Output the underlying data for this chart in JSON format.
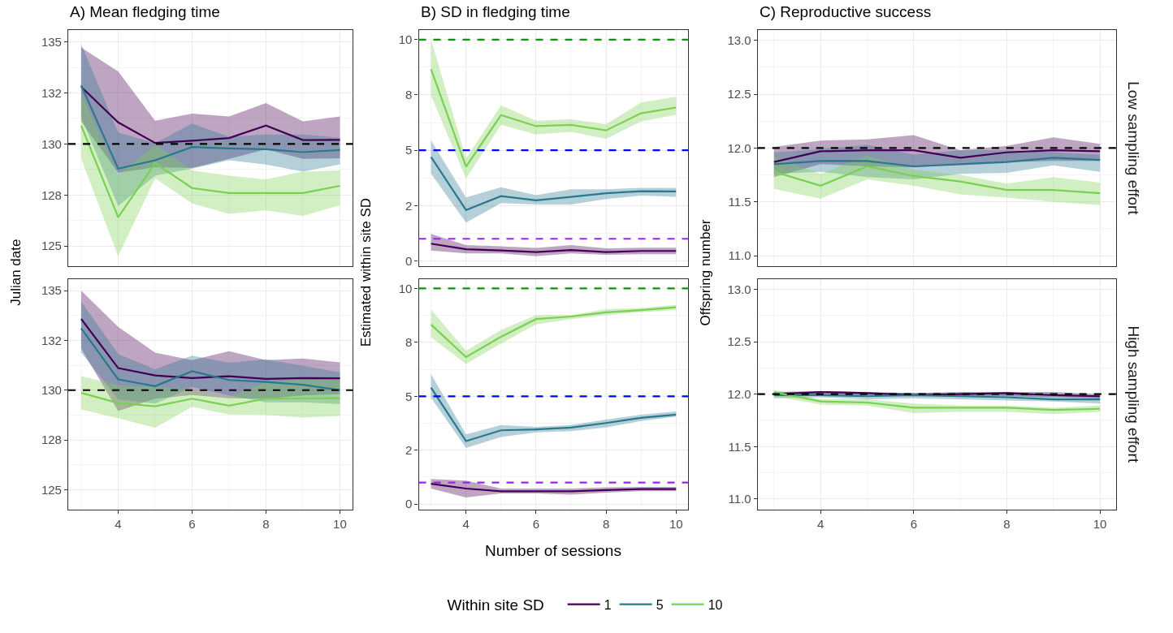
{
  "chart_data": [
    {
      "type": "line",
      "title": "A) Mean fledging time",
      "ylabel": "Julian date",
      "x": [
        3,
        4,
        5,
        6,
        7,
        8,
        9,
        10
      ],
      "xlim": [
        2.65,
        10.35
      ],
      "xticks": [
        4,
        6,
        8,
        10
      ],
      "ylim": [
        124.0,
        135.6
      ],
      "yticks": [
        125,
        {
          "value": 127.5,
          "label": "128"
        },
        130,
        {
          "value": 132.5,
          "label": "132"
        },
        135
      ],
      "grid": true,
      "tick_labels": "y",
      "legend": "bottom",
      "legend_title": "Within site SD",
      "series": [
        {
          "name": "1",
          "color": "#440154",
          "values": [
            132.8,
            131.06,
            130.05,
            130.16,
            130.29,
            130.9,
            130.19,
            130.2
          ],
          "lower": [
            131.1,
            128.59,
            128.86,
            128.82,
            129.27,
            129.74,
            129.27,
            129.3
          ],
          "upper": [
            134.73,
            133.55,
            131.14,
            131.49,
            131.35,
            132.0,
            131.11,
            131.35
          ]
        },
        {
          "name": "5",
          "color": "#2A788E",
          "values": [
            132.87,
            128.79,
            129.2,
            129.85,
            129.78,
            129.74,
            129.6,
            129.7
          ],
          "lower": [
            131.3,
            126.96,
            128.45,
            128.79,
            129.2,
            128.99,
            128.65,
            129.0
          ],
          "upper": [
            134.9,
            130.56,
            130.05,
            131.0,
            130.35,
            130.46,
            130.46,
            130.3
          ]
        },
        {
          "name": "10",
          "color": "#7AD151",
          "values": [
            130.9,
            126.41,
            129.06,
            127.84,
            127.6,
            127.6,
            127.6,
            127.95
          ],
          "lower": [
            129.27,
            124.51,
            128.32,
            127.09,
            126.58,
            126.75,
            126.48,
            127.0
          ],
          "upper": [
            132.46,
            128.48,
            129.95,
            128.7,
            128.45,
            128.27,
            128.65,
            128.7
          ]
        }
      ],
      "ref_lines": [
        {
          "axis": "y",
          "value": 130,
          "color": "#000000",
          "line_style": "dashed"
        }
      ]
    },
    {
      "type": "line",
      "title": "B) SD in fledging time",
      "ylabel": "Estimated within site SD",
      "x": [
        3,
        4,
        5,
        6,
        7,
        8,
        9,
        10
      ],
      "xlim": [
        2.65,
        10.35
      ],
      "xticks": [
        4,
        6,
        8,
        10
      ],
      "ylim": [
        -0.25,
        10.45
      ],
      "yticks": [
        0,
        {
          "value": 2.5,
          "label": "2"
        },
        5,
        {
          "value": 7.5,
          "label": "8"
        },
        10
      ],
      "grid": true,
      "tick_labels": "y",
      "series": [
        {
          "color": "#440154",
          "values": [
            0.78,
            0.53,
            0.47,
            0.4,
            0.49,
            0.4,
            0.45,
            0.45
          ],
          "lower": [
            0.47,
            0.34,
            0.34,
            0.21,
            0.34,
            0.28,
            0.3,
            0.3
          ],
          "upper": [
            1.22,
            0.72,
            0.66,
            0.59,
            0.72,
            0.57,
            0.6,
            0.6
          ]
        },
        {
          "color": "#2A788E",
          "values": [
            4.7,
            2.3,
            2.93,
            2.74,
            2.89,
            3.06,
            3.15,
            3.14
          ],
          "lower": [
            3.94,
            1.73,
            2.61,
            2.55,
            2.55,
            2.8,
            2.95,
            2.9
          ],
          "upper": [
            5.45,
            2.87,
            3.33,
            2.97,
            3.24,
            3.24,
            3.3,
            3.3
          ]
        },
        {
          "color": "#7AD151",
          "values": [
            8.67,
            4.26,
            6.59,
            6.09,
            6.15,
            5.9,
            6.67,
            6.93
          ],
          "lower": [
            7.47,
            3.72,
            6.15,
            5.71,
            5.83,
            5.52,
            6.3,
            6.6
          ],
          "upper": [
            10.0,
            4.63,
            7.03,
            6.34,
            6.4,
            6.17,
            7.16,
            7.42
          ]
        }
      ],
      "ref_lines": [
        {
          "axis": "y",
          "value": 10,
          "color": "#009900",
          "line_style": "dashed"
        },
        {
          "axis": "y",
          "value": 5,
          "color": "#0000FF",
          "line_style": "dashed"
        },
        {
          "axis": "y",
          "value": 1,
          "color": "#A020F0",
          "line_style": "dashed"
        }
      ]
    },
    {
      "type": "line",
      "title": "C) Reproductive success",
      "ylabel": "Offspring number",
      "annotations": [
        "Low sampling effort"
      ],
      "x": [
        3,
        4,
        5,
        6,
        7,
        8,
        9,
        10
      ],
      "xlim": [
        2.65,
        10.35
      ],
      "xticks": [
        4,
        6,
        8,
        10
      ],
      "ylim": [
        10.9,
        13.1
      ],
      "yticks": [
        {
          "value": 11,
          "label": "11.0"
        },
        11.5,
        {
          "value": 12,
          "label": "12.0"
        },
        12.5,
        {
          "value": 13,
          "label": "13.0"
        }
      ],
      "grid": true,
      "tick_labels": "y",
      "series": [
        {
          "color": "#440154",
          "values": [
            11.87,
            11.97,
            11.98,
            11.98,
            11.91,
            11.96,
            11.98,
            11.97
          ],
          "lower": [
            11.73,
            11.85,
            11.83,
            11.82,
            11.85,
            11.87,
            11.88,
            11.88
          ],
          "upper": [
            12.01,
            12.07,
            12.08,
            12.12,
            11.98,
            12.02,
            12.1,
            12.04
          ]
        },
        {
          "color": "#2A788E",
          "values": [
            11.85,
            11.88,
            11.88,
            11.83,
            11.85,
            11.87,
            11.91,
            11.89
          ],
          "lower": [
            11.76,
            11.78,
            11.73,
            11.71,
            11.76,
            11.77,
            11.84,
            11.78
          ],
          "upper": [
            11.96,
            11.99,
            12.03,
            11.94,
            11.98,
            11.98,
            11.96,
            11.94
          ]
        },
        {
          "color": "#7AD151",
          "values": [
            11.78,
            11.65,
            11.83,
            11.74,
            11.69,
            11.61,
            11.61,
            11.58
          ],
          "lower": [
            11.62,
            11.53,
            11.71,
            11.65,
            11.57,
            11.54,
            11.5,
            11.47
          ],
          "upper": [
            11.92,
            11.76,
            11.93,
            11.8,
            11.75,
            11.67,
            11.73,
            11.68
          ]
        }
      ],
      "ref_lines": [
        {
          "axis": "y",
          "value": 12,
          "color": "#000000",
          "line_style": "dashed"
        }
      ]
    },
    {
      "type": "line",
      "x": [
        3,
        4,
        5,
        6,
        7,
        8,
        9,
        10
      ],
      "xlim": [
        2.65,
        10.35
      ],
      "xticks": [
        4,
        6,
        8,
        10
      ],
      "ylim": [
        124.0,
        135.6
      ],
      "yticks": [
        125,
        {
          "value": 127.5,
          "label": "128"
        },
        130,
        {
          "value": 132.5,
          "label": "132"
        },
        135
      ],
      "grid": true,
      "series": [
        {
          "color": "#440154",
          "values": [
            133.58,
            131.11,
            130.74,
            130.61,
            130.7,
            130.57,
            130.61,
            130.6
          ],
          "lower": [
            132.09,
            128.95,
            129.57,
            129.76,
            129.59,
            129.57,
            129.73,
            129.8
          ],
          "upper": [
            135.0,
            133.18,
            131.89,
            131.51,
            131.96,
            131.51,
            131.59,
            131.4
          ]
        },
        {
          "color": "#2A788E",
          "values": [
            133.11,
            130.54,
            130.2,
            130.95,
            130.51,
            130.41,
            130.27,
            130.0
          ],
          "lower": [
            131.89,
            129.53,
            129.32,
            130.16,
            129.73,
            129.39,
            129.39,
            129.3
          ],
          "upper": [
            134.46,
            131.82,
            131.05,
            131.73,
            131.38,
            131.55,
            131.22,
            130.9
          ]
        },
        {
          "color": "#7AD151",
          "values": [
            129.86,
            129.35,
            129.19,
            129.57,
            129.22,
            129.57,
            129.59,
            129.6
          ],
          "lower": [
            129.03,
            128.58,
            128.11,
            129.16,
            128.78,
            128.76,
            128.62,
            128.7
          ],
          "upper": [
            130.7,
            130.24,
            130.14,
            130.03,
            129.66,
            130.41,
            130.54,
            130.5
          ]
        }
      ],
      "ref_lines": [
        {
          "axis": "y",
          "value": 130,
          "color": "#000000",
          "line_style": "dashed"
        }
      ]
    },
    {
      "type": "line",
      "xlabel": "Number of sessions",
      "x": [
        3,
        4,
        5,
        6,
        7,
        8,
        9,
        10
      ],
      "xlim": [
        2.65,
        10.35
      ],
      "xticks": [
        4,
        6,
        8,
        10
      ],
      "ylim": [
        -0.25,
        10.45
      ],
      "yticks": [
        0,
        {
          "value": 2.5,
          "label": "2"
        },
        5,
        {
          "value": 7.5,
          "label": "8"
        },
        10
      ],
      "grid": true,
      "series": [
        {
          "color": "#440154",
          "values": [
            0.94,
            0.72,
            0.59,
            0.59,
            0.59,
            0.65,
            0.7,
            0.7
          ],
          "lower": [
            0.72,
            0.31,
            0.49,
            0.49,
            0.44,
            0.53,
            0.6,
            0.6
          ],
          "upper": [
            1.16,
            1.09,
            0.72,
            0.72,
            0.72,
            0.78,
            0.8,
            0.8
          ]
        },
        {
          "color": "#2A788E",
          "values": [
            5.4,
            2.92,
            3.42,
            3.46,
            3.55,
            3.76,
            4.0,
            4.15
          ],
          "lower": [
            4.93,
            2.6,
            3.11,
            3.33,
            3.38,
            3.55,
            3.85,
            4.05
          ],
          "upper": [
            6.03,
            3.23,
            3.67,
            3.58,
            3.67,
            3.92,
            4.15,
            4.3
          ]
        },
        {
          "color": "#7AD151",
          "values": [
            8.33,
            6.82,
            7.76,
            8.58,
            8.7,
            8.89,
            9.0,
            9.13
          ],
          "lower": [
            7.74,
            6.5,
            7.45,
            8.33,
            8.58,
            8.77,
            8.9,
            9.0
          ],
          "upper": [
            9.02,
            7.11,
            8.08,
            8.77,
            8.77,
            9.04,
            9.1,
            9.25
          ]
        }
      ],
      "ref_lines": [
        {
          "axis": "y",
          "value": 10,
          "color": "#009900",
          "line_style": "dashed"
        },
        {
          "axis": "y",
          "value": 5,
          "color": "#0000FF",
          "line_style": "dashed"
        },
        {
          "axis": "y",
          "value": 1,
          "color": "#A020F0",
          "line_style": "dashed"
        }
      ]
    },
    {
      "type": "line",
      "annotations": [
        "High sampling effort"
      ],
      "x": [
        3,
        4,
        5,
        6,
        7,
        8,
        9,
        10
      ],
      "xlim": [
        2.65,
        10.35
      ],
      "xticks": [
        4,
        6,
        8,
        10
      ],
      "ylim": [
        10.9,
        13.1
      ],
      "yticks": [
        {
          "value": 11,
          "label": "11.0"
        },
        11.5,
        {
          "value": 12,
          "label": "12.0"
        },
        12.5,
        {
          "value": 13,
          "label": "13.0"
        }
      ],
      "grid": true,
      "series": [
        {
          "color": "#440154",
          "values": [
            12.0,
            12.02,
            12.01,
            11.99,
            12.0,
            12.01,
            11.99,
            11.98
          ],
          "lower": [
            11.98,
            11.99,
            11.99,
            11.98,
            11.98,
            11.98,
            11.97,
            11.96
          ],
          "upper": [
            12.02,
            12.03,
            12.02,
            12.01,
            12.02,
            12.02,
            12.02,
            12.0
          ]
        },
        {
          "color": "#2A788E",
          "values": [
            11.99,
            11.99,
            11.98,
            11.99,
            11.98,
            11.97,
            11.95,
            11.95
          ],
          "lower": [
            11.96,
            11.97,
            11.95,
            11.96,
            11.95,
            11.94,
            11.93,
            11.91
          ],
          "upper": [
            12.02,
            12.01,
            12.01,
            12.01,
            12.01,
            12.01,
            11.98,
            11.98
          ]
        },
        {
          "color": "#7AD151",
          "values": [
            12.02,
            11.93,
            11.92,
            11.87,
            11.87,
            11.87,
            11.85,
            11.86
          ],
          "lower": [
            11.98,
            11.9,
            11.89,
            11.82,
            11.83,
            11.83,
            11.81,
            11.83
          ],
          "upper": [
            12.04,
            11.95,
            11.95,
            11.91,
            11.89,
            11.89,
            11.87,
            11.89
          ]
        }
      ],
      "ref_lines": [
        {
          "axis": "y",
          "value": 12,
          "color": "#000000",
          "line_style": "dashed"
        }
      ]
    }
  ]
}
